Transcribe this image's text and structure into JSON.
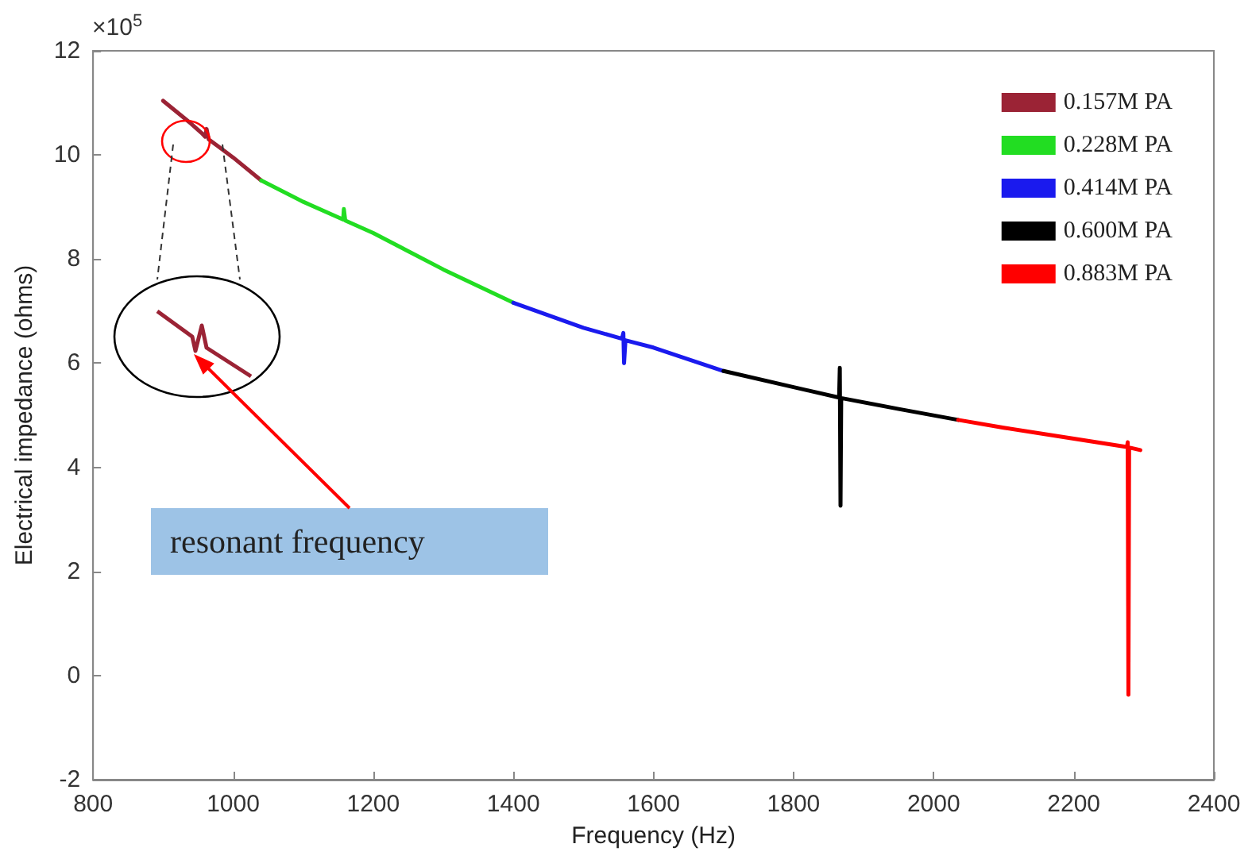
{
  "chart_data": {
    "type": "line",
    "xlabel": "Frequency (Hz)",
    "ylabel": "Electrical impedance (ohms)",
    "xlim": [
      800,
      2400
    ],
    "xticks": [
      800,
      1000,
      1200,
      1400,
      1600,
      1800,
      2000,
      2200,
      2400
    ],
    "ylim": [
      -2,
      12
    ],
    "yticks": [
      -2,
      0,
      2,
      4,
      6,
      8,
      10,
      12
    ],
    "grid": false,
    "legend": "top right",
    "marker": "none",
    "line_style": "solid",
    "annotations": [
      "×10$^{5}$",
      "resonant frequency"
    ],
    "series": [
      {
        "name": "0.157M PA",
        "color": "#9b2335",
        "x": [
          900,
          940,
          955,
          960,
          962,
          965,
          980,
          1000,
          1040
        ],
        "values": [
          11.04,
          10.6,
          10.42,
          10.35,
          10.5,
          10.3,
          10.15,
          9.95,
          9.51
        ]
      },
      {
        "name": "0.228M PA",
        "color": "#22dd22",
        "x": [
          1040,
          1100,
          1157,
          1158,
          1160,
          1200,
          1300,
          1400
        ],
        "values": [
          9.51,
          9.1,
          8.76,
          8.96,
          8.74,
          8.5,
          7.8,
          7.16
        ]
      },
      {
        "name": "0.414M PA",
        "color": "#1a1aee",
        "x": [
          1400,
          1500,
          1555,
          1557,
          1558,
          1560,
          1600,
          1700
        ],
        "values": [
          7.16,
          6.68,
          6.47,
          6.58,
          6.0,
          6.44,
          6.3,
          5.85
        ]
      },
      {
        "name": "0.600M PA",
        "color": "#000000",
        "x": [
          1700,
          1800,
          1865,
          1866,
          1867,
          1868,
          1950,
          2035
        ],
        "values": [
          5.85,
          5.54,
          5.34,
          5.91,
          3.26,
          5.33,
          5.12,
          4.91
        ]
      },
      {
        "name": "0.883M PA",
        "color": "#ff0000",
        "x": [
          2035,
          2100,
          2200,
          2276,
          2277,
          2278,
          2279,
          2295
        ],
        "values": [
          4.91,
          4.76,
          4.55,
          4.39,
          4.48,
          -0.37,
          4.38,
          4.33
        ]
      }
    ]
  }
}
